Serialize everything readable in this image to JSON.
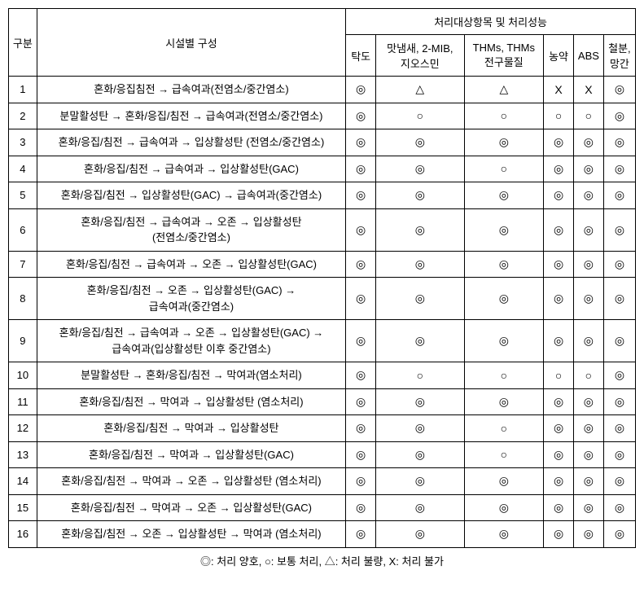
{
  "headers": {
    "num": "구분",
    "desc": "시설별 구성",
    "group": "처리대상항목 및 처리성능",
    "sub": [
      "탁도",
      "맛냄새, 2-MIB,\n지오스민",
      "THMs, THMs\n전구물질",
      "농약",
      "ABS",
      "철분,\n망간"
    ]
  },
  "symbols": {
    "excellent": "◎",
    "good": "○",
    "poor": "△",
    "none": "X"
  },
  "rows": [
    {
      "n": "1",
      "d": "혼화/응집침전 → 급속여과(전염소/중간염소)",
      "s": [
        "excellent",
        "poor",
        "poor",
        "none",
        "none",
        "excellent"
      ]
    },
    {
      "n": "2",
      "d": "분말활성탄 → 혼화/응집/침전 → 급속여과(전염소/중간염소)",
      "s": [
        "excellent",
        "good",
        "good",
        "good",
        "good",
        "excellent"
      ]
    },
    {
      "n": "3",
      "d": "혼화/응집/침전 → 급속여과 → 입상활성탄 (전염소/중간염소)",
      "s": [
        "excellent",
        "excellent",
        "excellent",
        "excellent",
        "excellent",
        "excellent"
      ]
    },
    {
      "n": "4",
      "d": "혼화/응집/침전 → 급속여과 → 입상활성탄(GAC)",
      "s": [
        "excellent",
        "excellent",
        "good",
        "excellent",
        "excellent",
        "excellent"
      ]
    },
    {
      "n": "5",
      "d": "혼화/응집/침전 → 입상활성탄(GAC) → 급속여과(중간염소)",
      "s": [
        "excellent",
        "excellent",
        "excellent",
        "excellent",
        "excellent",
        "excellent"
      ]
    },
    {
      "n": "6",
      "d": "혼화/응집/침전 → 급속여과 → 오존 → 입상활성탄\n(전염소/중간염소)",
      "s": [
        "excellent",
        "excellent",
        "excellent",
        "excellent",
        "excellent",
        "excellent"
      ]
    },
    {
      "n": "7",
      "d": "혼화/응집/침전 → 급속여과 → 오존 → 입상활성탄(GAC)",
      "s": [
        "excellent",
        "excellent",
        "excellent",
        "excellent",
        "excellent",
        "excellent"
      ]
    },
    {
      "n": "8",
      "d": "혼화/응집/침전 → 오존 → 입상활성탄(GAC) →\n급속여과(중간염소)",
      "s": [
        "excellent",
        "excellent",
        "excellent",
        "excellent",
        "excellent",
        "excellent"
      ]
    },
    {
      "n": "9",
      "d": "혼화/응집/침전 → 급속여과 → 오존 → 입상활성탄(GAC) →\n급속여과(입상활성탄 이후 중간염소)",
      "s": [
        "excellent",
        "excellent",
        "excellent",
        "excellent",
        "excellent",
        "excellent"
      ]
    },
    {
      "n": "10",
      "d": "분말활성탄 → 혼화/응집/침전 → 막여과(염소처리)",
      "s": [
        "excellent",
        "good",
        "good",
        "good",
        "good",
        "excellent"
      ]
    },
    {
      "n": "11",
      "d": "혼화/응집/침전 → 막여과 → 입상활성탄 (염소처리)",
      "s": [
        "excellent",
        "excellent",
        "excellent",
        "excellent",
        "excellent",
        "excellent"
      ]
    },
    {
      "n": "12",
      "d": "혼화/응집/침전 → 막여과 → 입상활성탄",
      "s": [
        "excellent",
        "excellent",
        "good",
        "excellent",
        "excellent",
        "excellent"
      ]
    },
    {
      "n": "13",
      "d": "혼화/응집/침전 → 막여과 → 입상활성탄(GAC)",
      "s": [
        "excellent",
        "excellent",
        "good",
        "excellent",
        "excellent",
        "excellent"
      ]
    },
    {
      "n": "14",
      "d": "혼화/응집/침전 → 막여과 → 오존 → 입상활성탄 (염소처리)",
      "s": [
        "excellent",
        "excellent",
        "excellent",
        "excellent",
        "excellent",
        "excellent"
      ]
    },
    {
      "n": "15",
      "d": "혼화/응집/침전 → 막여과 → 오존 → 입상활성탄(GAC)",
      "s": [
        "excellent",
        "excellent",
        "excellent",
        "excellent",
        "excellent",
        "excellent"
      ]
    },
    {
      "n": "16",
      "d": "혼화/응집/침전 → 오존 → 입상활성탄 → 막여과 (염소처리)",
      "s": [
        "excellent",
        "excellent",
        "excellent",
        "excellent",
        "excellent",
        "excellent"
      ]
    }
  ],
  "legend": "◎: 처리 양호, ○: 보통 처리, △: 처리 불량, X: 처리 불가"
}
